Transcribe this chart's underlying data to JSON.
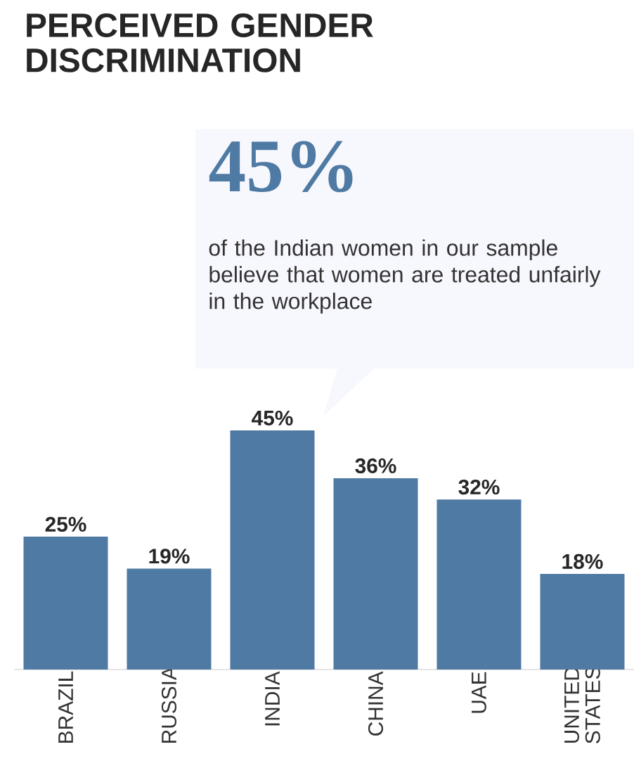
{
  "chart_data": {
    "type": "bar",
    "title": "PERCEIVED GENDER DISCRIMINATION",
    "categories": [
      "BRAZIL",
      "RUSSIA",
      "INDIA",
      "CHINA",
      "UAE",
      "UNITED STATES"
    ],
    "values": [
      25,
      19,
      45,
      36,
      32,
      18
    ],
    "value_labels": [
      "25%",
      "19%",
      "45%",
      "36%",
      "32%",
      "18%"
    ],
    "color": "#4f7aa3",
    "annotations": [
      "45%",
      "of the Indian women in our sample believe that women are treated unfairly in the workplace"
    ]
  }
}
